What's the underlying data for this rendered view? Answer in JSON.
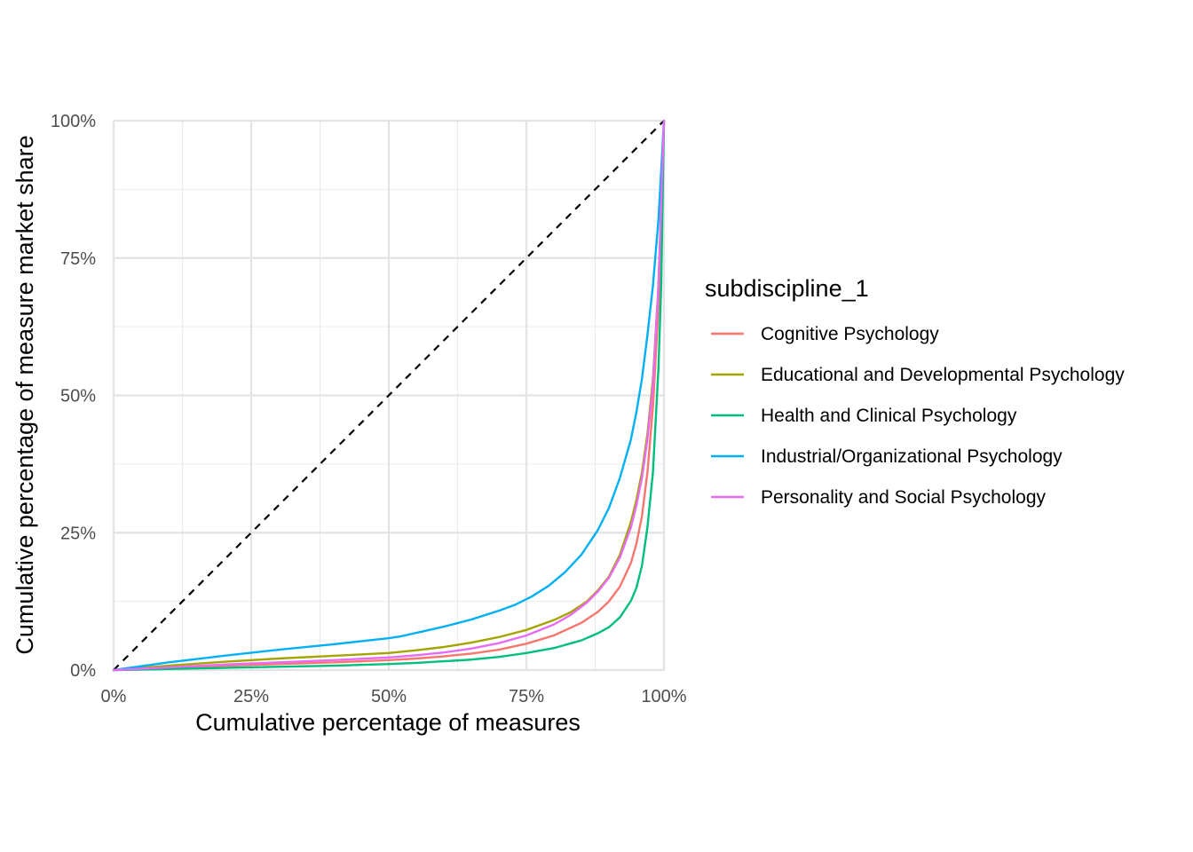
{
  "chart_data": {
    "type": "line",
    "title": "",
    "xlabel": "Cumulative percentage of measures",
    "ylabel": "Cumulative percentage of measure market share",
    "xlim": [
      0,
      100
    ],
    "ylim": [
      0,
      100
    ],
    "x_ticks": [
      0,
      25,
      50,
      75,
      100
    ],
    "y_ticks": [
      0,
      25,
      50,
      75,
      100
    ],
    "x_tick_labels": [
      "0%",
      "25%",
      "50%",
      "75%",
      "100%"
    ],
    "y_tick_labels": [
      "0%",
      "25%",
      "50%",
      "75%",
      "100%"
    ],
    "grid": true,
    "legend_position": "right",
    "legend_title": "subdiscipline_1",
    "reference_line": {
      "style": "dashed",
      "color": "#000000",
      "points": [
        [
          0,
          0
        ],
        [
          100,
          100
        ]
      ]
    },
    "series": [
      {
        "name": "Cognitive Psychology",
        "color": "#F8766D",
        "points": [
          [
            0,
            0
          ],
          [
            10,
            0.4
          ],
          [
            20,
            0.8
          ],
          [
            30,
            1.1
          ],
          [
            40,
            1.4
          ],
          [
            50,
            1.8
          ],
          [
            55,
            2.1
          ],
          [
            60,
            2.5
          ],
          [
            65,
            3
          ],
          [
            70,
            3.7
          ],
          [
            75,
            4.8
          ],
          [
            80,
            6.3
          ],
          [
            85,
            8.6
          ],
          [
            88,
            10.6
          ],
          [
            90,
            12.5
          ],
          [
            92,
            15.2
          ],
          [
            94,
            19.5
          ],
          [
            95,
            23
          ],
          [
            96,
            28
          ],
          [
            97,
            36
          ],
          [
            98,
            48
          ],
          [
            99,
            66
          ],
          [
            99.5,
            80
          ],
          [
            100,
            100
          ]
        ]
      },
      {
        "name": "Educational and Developmental Psychology",
        "color": "#A3A500",
        "points": [
          [
            0,
            0
          ],
          [
            10,
            0.8
          ],
          [
            20,
            1.5
          ],
          [
            30,
            2.1
          ],
          [
            40,
            2.6
          ],
          [
            50,
            3.1
          ],
          [
            55,
            3.6
          ],
          [
            60,
            4.2
          ],
          [
            65,
            5
          ],
          [
            70,
            6
          ],
          [
            75,
            7.3
          ],
          [
            80,
            9.1
          ],
          [
            83,
            10.5
          ],
          [
            86,
            12.5
          ],
          [
            88,
            14.5
          ],
          [
            90,
            17
          ],
          [
            92,
            21
          ],
          [
            94,
            27
          ],
          [
            95,
            31
          ],
          [
            96,
            36
          ],
          [
            97,
            43
          ],
          [
            98,
            53
          ],
          [
            99,
            70
          ],
          [
            100,
            100
          ]
        ]
      },
      {
        "name": "Health and Clinical Psychology",
        "color": "#00BF7D",
        "points": [
          [
            0,
            0
          ],
          [
            20,
            0.4
          ],
          [
            40,
            0.8
          ],
          [
            50,
            1.1
          ],
          [
            55,
            1.3
          ],
          [
            60,
            1.6
          ],
          [
            65,
            1.9
          ],
          [
            70,
            2.4
          ],
          [
            75,
            3.1
          ],
          [
            80,
            4
          ],
          [
            85,
            5.4
          ],
          [
            88,
            6.7
          ],
          [
            90,
            7.8
          ],
          [
            92,
            9.6
          ],
          [
            94,
            12.6
          ],
          [
            95,
            15
          ],
          [
            96,
            19
          ],
          [
            97,
            26
          ],
          [
            98,
            36
          ],
          [
            99,
            55
          ],
          [
            99.5,
            70
          ],
          [
            100,
            100
          ]
        ]
      },
      {
        "name": "Industrial/Organizational Psychology",
        "color": "#00B0F6",
        "points": [
          [
            0,
            0
          ],
          [
            10,
            1.4
          ],
          [
            20,
            2.6
          ],
          [
            30,
            3.7
          ],
          [
            40,
            4.7
          ],
          [
            50,
            5.8
          ],
          [
            52,
            6.1
          ],
          [
            56,
            7
          ],
          [
            60,
            7.9
          ],
          [
            65,
            9.2
          ],
          [
            70,
            10.8
          ],
          [
            73,
            11.9
          ],
          [
            76,
            13.4
          ],
          [
            79,
            15.3
          ],
          [
            82,
            17.8
          ],
          [
            85,
            21
          ],
          [
            88,
            25.5
          ],
          [
            90,
            29.5
          ],
          [
            92,
            35
          ],
          [
            94,
            42
          ],
          [
            95,
            47
          ],
          [
            96,
            53
          ],
          [
            97,
            61
          ],
          [
            98,
            70
          ],
          [
            99,
            82
          ],
          [
            100,
            100
          ]
        ]
      },
      {
        "name": "Personality and Social Psychology",
        "color": "#E76BF3",
        "points": [
          [
            0,
            0
          ],
          [
            10,
            0.5
          ],
          [
            20,
            1
          ],
          [
            30,
            1.4
          ],
          [
            40,
            1.8
          ],
          [
            50,
            2.3
          ],
          [
            55,
            2.7
          ],
          [
            60,
            3.2
          ],
          [
            65,
            3.9
          ],
          [
            70,
            4.9
          ],
          [
            75,
            6.3
          ],
          [
            80,
            8.3
          ],
          [
            83,
            10
          ],
          [
            86,
            12.3
          ],
          [
            88,
            14.3
          ],
          [
            90,
            16.8
          ],
          [
            92,
            20.5
          ],
          [
            94,
            26
          ],
          [
            95,
            30
          ],
          [
            96,
            35
          ],
          [
            97,
            42
          ],
          [
            98,
            52
          ],
          [
            99,
            70
          ],
          [
            100,
            100
          ]
        ]
      }
    ]
  }
}
